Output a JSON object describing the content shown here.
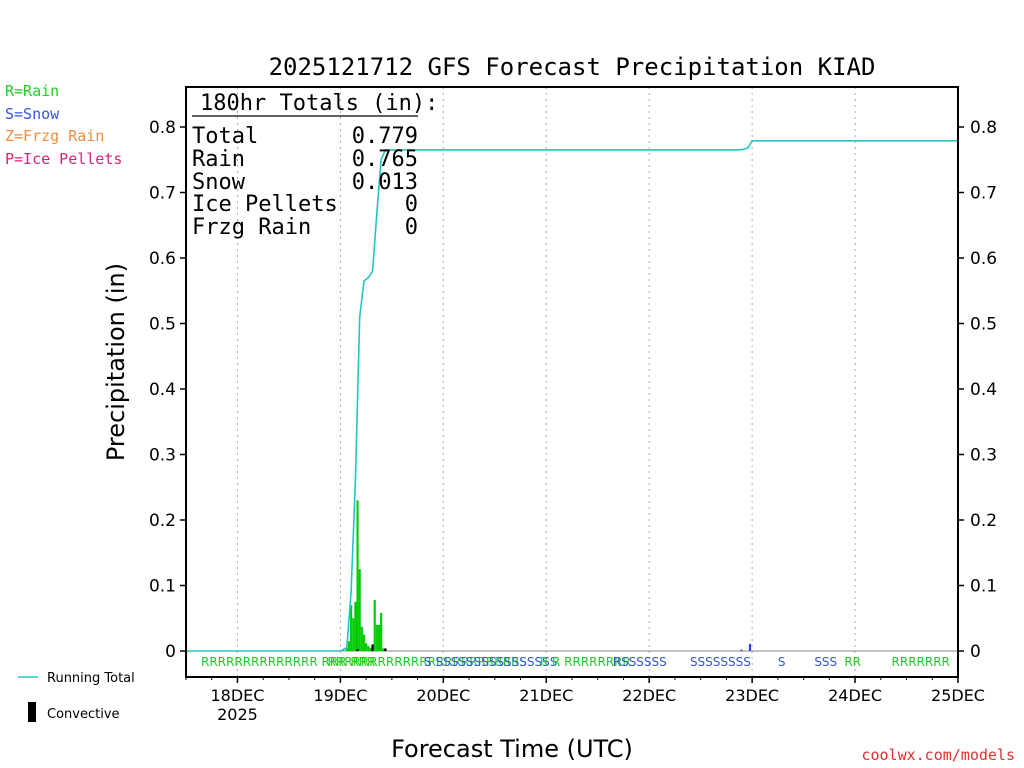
{
  "chart_data": {
    "type": "bar",
    "title": "2025121712 GFS Forecast Precipitation KIAD",
    "xlabel": "Forecast Time (UTC)",
    "ylabel": "Precipitation (in)",
    "ylim": [
      0,
      0.86
    ],
    "x_range_hours": [
      0,
      180
    ],
    "y_ticks": [
      "0",
      "0.1",
      "0.2",
      "0.3",
      "0.4",
      "0.5",
      "0.6",
      "0.7",
      "0.8"
    ],
    "y_tick_values": [
      0,
      0.1,
      0.2,
      0.3,
      0.4,
      0.5,
      0.6,
      0.7,
      0.8
    ],
    "x_ticks": [
      {
        "label": "18DEC",
        "sub": "2025",
        "hour": 12
      },
      {
        "label": "19DEC",
        "sub": "",
        "hour": 36
      },
      {
        "label": "20DEC",
        "sub": "",
        "hour": 60
      },
      {
        "label": "21DEC",
        "sub": "",
        "hour": 84
      },
      {
        "label": "22DEC",
        "sub": "",
        "hour": 108
      },
      {
        "label": "23DEC",
        "sub": "",
        "hour": 132
      },
      {
        "label": "24DEC",
        "sub": "",
        "hour": 156
      },
      {
        "label": "25DEC",
        "sub": "",
        "hour": 180
      }
    ],
    "legend_types": [
      {
        "text": "R=Rain",
        "color": "#22cc22"
      },
      {
        "text": "S=Snow",
        "color": "#3355dd"
      },
      {
        "text": "Z=Frzg Rain",
        "color": "#f08c3c"
      },
      {
        "text": "P=Ice Pellets",
        "color": "#e0207a"
      }
    ],
    "legend_bottom": {
      "running_total": "Running Total",
      "convective": "Convective"
    },
    "totals": {
      "header": "180hr Totals (in):",
      "rows": [
        {
          "label": "Total",
          "value": "0.779"
        },
        {
          "label": "Rain",
          "value": "0.765"
        },
        {
          "label": "Snow",
          "value": "0.013"
        },
        {
          "label": "Ice Pellets",
          "value": "0"
        },
        {
          "label": "Frzg Rain",
          "value": "0"
        }
      ]
    },
    "colors": {
      "rain": "#00cc00",
      "snow": "#2244dd",
      "convective": "#000000",
      "running_total": "#22c4c4",
      "grid": "#aaaaaa"
    },
    "precip_bars": [
      {
        "hour": 37.5,
        "value": 0.005,
        "type": "rain"
      },
      {
        "hour": 38.0,
        "value": 0.015,
        "type": "rain"
      },
      {
        "hour": 38.5,
        "value": 0.07,
        "type": "rain"
      },
      {
        "hour": 39.0,
        "value": 0.05,
        "type": "rain"
      },
      {
        "hour": 39.5,
        "value": 0.075,
        "type": "rain"
      },
      {
        "hour": 40.0,
        "value": 0.23,
        "type": "rain"
      },
      {
        "hour": 40.5,
        "value": 0.125,
        "type": "rain"
      },
      {
        "hour": 41.0,
        "value": 0.037,
        "type": "rain"
      },
      {
        "hour": 41.5,
        "value": 0.025,
        "type": "rain"
      },
      {
        "hour": 42.0,
        "value": 0.012,
        "type": "rain"
      },
      {
        "hour": 42.5,
        "value": 0.008,
        "type": "rain"
      },
      {
        "hour": 43.0,
        "value": 0.005,
        "type": "rain"
      },
      {
        "hour": 43.5,
        "value": 0.01,
        "type": "rain"
      },
      {
        "hour": 44.0,
        "value": 0.078,
        "type": "rain"
      },
      {
        "hour": 44.5,
        "value": 0.04,
        "type": "rain"
      },
      {
        "hour": 45.0,
        "value": 0.04,
        "type": "rain"
      },
      {
        "hour": 45.5,
        "value": 0.058,
        "type": "rain"
      },
      {
        "hour": 46.0,
        "value": 0.004,
        "type": "rain"
      },
      {
        "hour": 131.5,
        "value": 0.011,
        "type": "snow"
      },
      {
        "hour": 129.5,
        "value": 0.002,
        "type": "snow"
      }
    ],
    "convective_bars": [
      {
        "hour": 40.0,
        "value": 0.003
      },
      {
        "hour": 43.5,
        "value": 0.01
      },
      {
        "hour": 46.5,
        "value": 0.004
      }
    ],
    "running_total": [
      {
        "hour": 0,
        "value": 0
      },
      {
        "hour": 36,
        "value": 0
      },
      {
        "hour": 37.5,
        "value": 0.005
      },
      {
        "hour": 38.5,
        "value": 0.09
      },
      {
        "hour": 39.5,
        "value": 0.26
      },
      {
        "hour": 40.5,
        "value": 0.51
      },
      {
        "hour": 41.5,
        "value": 0.565
      },
      {
        "hour": 42.5,
        "value": 0.57
      },
      {
        "hour": 43.5,
        "value": 0.58
      },
      {
        "hour": 44.5,
        "value": 0.67
      },
      {
        "hour": 45.5,
        "value": 0.75
      },
      {
        "hour": 46.5,
        "value": 0.765
      },
      {
        "hour": 129,
        "value": 0.765
      },
      {
        "hour": 130,
        "value": 0.766
      },
      {
        "hour": 131,
        "value": 0.768
      },
      {
        "hour": 132,
        "value": 0.779
      },
      {
        "hour": 180,
        "value": 0.779
      }
    ],
    "ptype_row": [
      {
        "hour": 3.5,
        "text": "RRRRRRRRRRRRRR RRR RRR",
        "type": "rain"
      },
      {
        "hour": 33,
        "text": "RRRRRRRRRRRRRRRRRRRRRRRS",
        "type": "rain"
      },
      {
        "hour": 55.5,
        "text": "S SSSSSSSSSSSSSSSS",
        "type": "snow"
      },
      {
        "hour": 82.5,
        "text": "R R RRRRRRRR",
        "type": "rain"
      },
      {
        "hour": 99.5,
        "text": "RSSSSSS",
        "type": "snow"
      },
      {
        "hour": 117.5,
        "text": "SSSSSSSS",
        "type": "snow"
      },
      {
        "hour": 138,
        "text": "S",
        "type": "snow"
      },
      {
        "hour": 146.5,
        "text": "SSS",
        "type": "snow"
      },
      {
        "hour": 153.5,
        "text": "RR",
        "type": "rain"
      },
      {
        "hour": 164.5,
        "text": "RRRRRRR",
        "type": "rain"
      }
    ],
    "credit": "coolwx.com/models"
  }
}
